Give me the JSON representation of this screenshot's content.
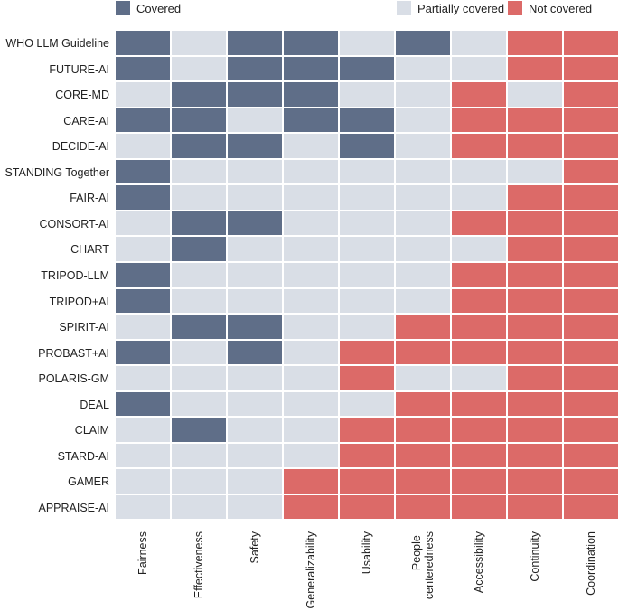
{
  "chart_data": {
    "type": "heatmap",
    "legend": [
      {
        "key": "C",
        "label": "Covered",
        "color": "#5f6e88"
      },
      {
        "key": "P",
        "label": "Partially covered",
        "color": "#d9dee6"
      },
      {
        "key": "N",
        "label": "Not covered",
        "color": "#dc6a68"
      }
    ],
    "legend_placement": "top",
    "columns": [
      "Fairness",
      "Effectiveness",
      "Safety",
      "Generalizability",
      "Usability",
      "People-\ncenteredness",
      "Accessibility",
      "Continuity",
      "Coordination"
    ],
    "rows": [
      "WHO LLM Guideline",
      "FUTURE-AI",
      "CORE-MD",
      "CARE-AI",
      "DECIDE-AI",
      "STANDING Together",
      "FAIR-AI",
      "CONSORT-AI",
      "CHART",
      "TRIPOD-LLM",
      "TRIPOD+AI",
      "SPIRIT-AI",
      "PROBAST+AI",
      "POLARIS-GM",
      "DEAL",
      "CLAIM",
      "STARD-AI",
      "GAMER",
      "APPRAISE-AI"
    ],
    "values": [
      [
        "C",
        "P",
        "C",
        "C",
        "P",
        "C",
        "P",
        "N",
        "N"
      ],
      [
        "C",
        "P",
        "C",
        "C",
        "C",
        "P",
        "P",
        "N",
        "N"
      ],
      [
        "P",
        "C",
        "C",
        "C",
        "P",
        "P",
        "N",
        "P",
        "N"
      ],
      [
        "C",
        "C",
        "P",
        "C",
        "C",
        "P",
        "N",
        "N",
        "N"
      ],
      [
        "P",
        "C",
        "C",
        "P",
        "C",
        "P",
        "N",
        "N",
        "N"
      ],
      [
        "C",
        "P",
        "P",
        "P",
        "P",
        "P",
        "P",
        "P",
        "N"
      ],
      [
        "C",
        "P",
        "P",
        "P",
        "P",
        "P",
        "P",
        "N",
        "N"
      ],
      [
        "P",
        "C",
        "C",
        "P",
        "P",
        "P",
        "N",
        "N",
        "N"
      ],
      [
        "P",
        "C",
        "P",
        "P",
        "P",
        "P",
        "P",
        "N",
        "N"
      ],
      [
        "C",
        "P",
        "P",
        "P",
        "P",
        "P",
        "N",
        "N",
        "N"
      ],
      [
        "C",
        "P",
        "P",
        "P",
        "P",
        "P",
        "N",
        "N",
        "N"
      ],
      [
        "P",
        "C",
        "C",
        "P",
        "P",
        "N",
        "N",
        "N",
        "N"
      ],
      [
        "C",
        "P",
        "C",
        "P",
        "N",
        "N",
        "N",
        "N",
        "N"
      ],
      [
        "P",
        "P",
        "P",
        "P",
        "N",
        "P",
        "P",
        "N",
        "N"
      ],
      [
        "C",
        "P",
        "P",
        "P",
        "P",
        "N",
        "N",
        "N",
        "N"
      ],
      [
        "P",
        "C",
        "P",
        "P",
        "N",
        "N",
        "N",
        "N",
        "N"
      ],
      [
        "P",
        "P",
        "P",
        "P",
        "N",
        "N",
        "N",
        "N",
        "N"
      ],
      [
        "P",
        "P",
        "P",
        "N",
        "N",
        "N",
        "N",
        "N",
        "N"
      ],
      [
        "P",
        "P",
        "P",
        "N",
        "N",
        "N",
        "N",
        "N",
        "N"
      ]
    ]
  }
}
